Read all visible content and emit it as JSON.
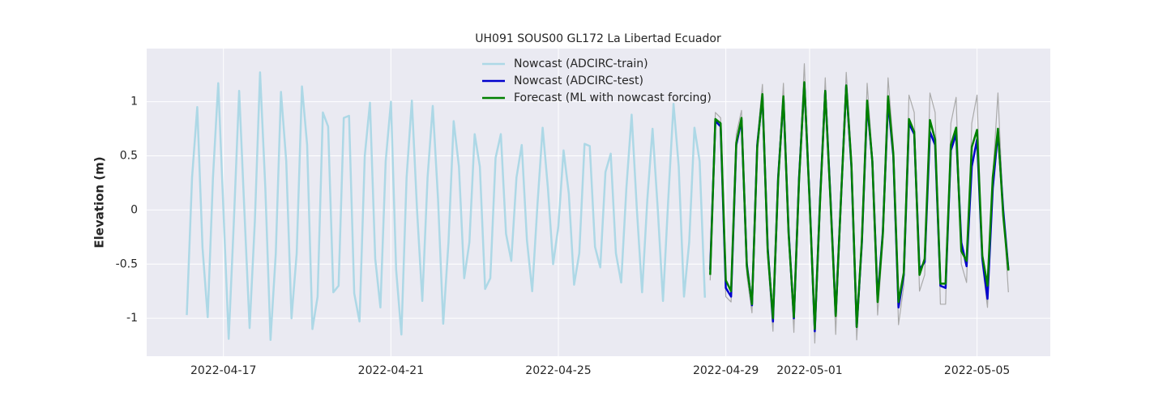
{
  "chart_data": {
    "type": "line",
    "title": "UH091 SOUS00 GL172 La Libertad Ecuador",
    "y_label": "Elevation (m)",
    "xlim": [
      "2022-04-15T04:00",
      "2022-05-06T18:00"
    ],
    "xticks": [
      "2022-04-17",
      "2022-04-21",
      "2022-04-25",
      "2022-04-29",
      "2022-05-01",
      "2022-05-05"
    ],
    "ylim": [
      -1.35,
      1.49
    ],
    "yticks": [
      -1.0,
      -0.5,
      0.0,
      0.5,
      1.0
    ],
    "grid": true,
    "legend": "upper center",
    "series": [
      {
        "name": "Nowcast (ADCIRC-train)",
        "color": "#add8e6",
        "width": 2.5,
        "x": [
          "2022-04-16T03:00",
          "2022-04-16T06:00",
          "2022-04-16T09:00",
          "2022-04-16T12:00",
          "2022-04-16T15:00",
          "2022-04-16T18:00",
          "2022-04-16T21:00",
          "2022-04-17T00:00",
          "2022-04-17T03:00",
          "2022-04-17T06:00",
          "2022-04-17T09:00",
          "2022-04-17T12:00",
          "2022-04-17T15:00",
          "2022-04-17T18:00",
          "2022-04-17T21:00",
          "2022-04-18T00:00",
          "2022-04-18T03:00",
          "2022-04-18T06:00",
          "2022-04-18T09:00",
          "2022-04-18T12:00",
          "2022-04-18T15:00",
          "2022-04-18T18:00",
          "2022-04-18T21:00",
          "2022-04-19T00:00",
          "2022-04-19T03:00",
          "2022-04-19T06:00",
          "2022-04-19T09:00",
          "2022-04-19T12:00",
          "2022-04-19T15:00",
          "2022-04-19T18:00",
          "2022-04-19T21:00",
          "2022-04-20T00:00",
          "2022-04-20T03:00",
          "2022-04-20T06:00",
          "2022-04-20T09:00",
          "2022-04-20T12:00",
          "2022-04-20T15:00",
          "2022-04-20T18:00",
          "2022-04-20T21:00",
          "2022-04-21T00:00",
          "2022-04-21T03:00",
          "2022-04-21T06:00",
          "2022-04-21T09:00",
          "2022-04-21T12:00",
          "2022-04-21T15:00",
          "2022-04-21T18:00",
          "2022-04-21T21:00",
          "2022-04-22T00:00",
          "2022-04-22T03:00",
          "2022-04-22T06:00",
          "2022-04-22T09:00",
          "2022-04-22T12:00",
          "2022-04-22T15:00",
          "2022-04-22T18:00",
          "2022-04-22T21:00",
          "2022-04-23T00:00",
          "2022-04-23T03:00",
          "2022-04-23T06:00",
          "2022-04-23T09:00",
          "2022-04-23T12:00",
          "2022-04-23T15:00",
          "2022-04-23T18:00",
          "2022-04-23T21:00",
          "2022-04-24T00:00",
          "2022-04-24T03:00",
          "2022-04-24T06:00",
          "2022-04-24T09:00",
          "2022-04-24T12:00",
          "2022-04-24T15:00",
          "2022-04-24T18:00",
          "2022-04-24T21:00",
          "2022-04-25T00:00",
          "2022-04-25T03:00",
          "2022-04-25T06:00",
          "2022-04-25T09:00",
          "2022-04-25T12:00",
          "2022-04-25T15:00",
          "2022-04-25T18:00",
          "2022-04-25T21:00",
          "2022-04-26T00:00",
          "2022-04-26T03:00",
          "2022-04-26T06:00",
          "2022-04-26T09:00",
          "2022-04-26T12:00",
          "2022-04-26T15:00",
          "2022-04-26T18:00",
          "2022-04-26T21:00",
          "2022-04-27T00:00",
          "2022-04-27T03:00",
          "2022-04-27T06:00",
          "2022-04-27T09:00",
          "2022-04-27T12:00",
          "2022-04-27T15:00",
          "2022-04-27T18:00",
          "2022-04-27T21:00",
          "2022-04-28T00:00",
          "2022-04-28T03:00",
          "2022-04-28T06:00",
          "2022-04-28T09:00",
          "2022-04-28T12:00"
        ],
        "values": [
          -0.97,
          0.3,
          0.95,
          -0.35,
          -0.99,
          0.3,
          1.17,
          0.0,
          -1.19,
          -0.1,
          1.1,
          0.0,
          -1.09,
          -0.1,
          1.27,
          0.2,
          -1.2,
          -0.4,
          1.09,
          0.45,
          -1.0,
          -0.4,
          1.14,
          0.6,
          -1.1,
          -0.8,
          0.9,
          0.77,
          -0.76,
          -0.7,
          0.85,
          0.87,
          -0.77,
          -1.03,
          0.5,
          0.99,
          -0.45,
          -0.9,
          0.45,
          1.0,
          -0.55,
          -1.15,
          0.3,
          1.01,
          0.0,
          -0.84,
          0.3,
          0.96,
          0.1,
          -1.05,
          -0.3,
          0.82,
          0.4,
          -0.63,
          -0.3,
          0.7,
          0.4,
          -0.73,
          -0.63,
          0.48,
          0.7,
          -0.22,
          -0.47,
          0.3,
          0.6,
          -0.28,
          -0.75,
          0.05,
          0.76,
          0.2,
          -0.5,
          -0.15,
          0.55,
          0.15,
          -0.69,
          -0.4,
          0.61,
          0.59,
          -0.34,
          -0.53,
          0.35,
          0.52,
          -0.4,
          -0.67,
          0.2,
          0.88,
          0.0,
          -0.76,
          0.1,
          0.75,
          0.0,
          -0.84,
          0.1,
          0.98,
          0.4,
          -0.8,
          -0.3,
          0.76,
          0.45,
          -0.81
        ]
      },
      {
        "color": "#aaaaaa",
        "width": 1.2,
        "x": [
          "2022-04-28T15:00",
          "2022-04-28T18:00",
          "2022-04-28T21:00",
          "2022-04-29T00:00",
          "2022-04-29T03:00",
          "2022-04-29T06:00",
          "2022-04-29T09:00",
          "2022-04-29T12:00",
          "2022-04-29T15:00",
          "2022-04-29T18:00",
          "2022-04-29T21:00",
          "2022-04-30T00:00",
          "2022-04-30T03:00",
          "2022-04-30T06:00",
          "2022-04-30T09:00",
          "2022-04-30T12:00",
          "2022-04-30T15:00",
          "2022-04-30T18:00",
          "2022-04-30T21:00",
          "2022-05-01T00:00",
          "2022-05-01T03:00",
          "2022-05-01T06:00",
          "2022-05-01T09:00",
          "2022-05-01T12:00",
          "2022-05-01T15:00",
          "2022-05-01T18:00",
          "2022-05-01T21:00",
          "2022-05-02T00:00",
          "2022-05-02T03:00",
          "2022-05-02T06:00",
          "2022-05-02T09:00",
          "2022-05-02T12:00",
          "2022-05-02T15:00",
          "2022-05-02T18:00",
          "2022-05-02T21:00",
          "2022-05-03T00:00",
          "2022-05-03T03:00",
          "2022-05-03T06:00",
          "2022-05-03T09:00",
          "2022-05-03T12:00",
          "2022-05-03T15:00",
          "2022-05-03T18:00",
          "2022-05-03T21:00",
          "2022-05-04T00:00",
          "2022-05-04T03:00",
          "2022-05-04T06:00",
          "2022-05-04T09:00",
          "2022-05-04T12:00",
          "2022-05-04T15:00",
          "2022-05-04T18:00",
          "2022-05-04T21:00",
          "2022-05-05T00:00",
          "2022-05-05T03:00",
          "2022-05-05T06:00",
          "2022-05-05T09:00",
          "2022-05-05T12:00",
          "2022-05-05T15:00",
          "2022-05-05T18:00"
        ],
        "values": [
          -0.65,
          0.9,
          0.85,
          -0.8,
          -0.85,
          0.7,
          0.92,
          -0.6,
          -0.95,
          0.65,
          1.16,
          -0.45,
          -1.12,
          0.35,
          1.17,
          -0.25,
          -1.13,
          0.35,
          1.35,
          0.05,
          -1.23,
          0.1,
          1.22,
          0.1,
          -1.15,
          0.1,
          1.27,
          0.5,
          -1.2,
          -0.35,
          1.17,
          0.5,
          -0.97,
          -0.3,
          1.22,
          0.6,
          -1.06,
          -0.7,
          1.06,
          0.9,
          -0.75,
          -0.6,
          1.08,
          0.9,
          -0.87,
          -0.87,
          0.8,
          1.04,
          -0.5,
          -0.67,
          0.8,
          1.06,
          -0.5,
          -0.9,
          0.3,
          1.08,
          0.0,
          -0.76
        ]
      },
      {
        "name": "Nowcast (ADCIRC-test)",
        "color": "#0000cd",
        "width": 2.5,
        "x": [
          "2022-04-28T15:00",
          "2022-04-28T18:00",
          "2022-04-28T21:00",
          "2022-04-29T00:00",
          "2022-04-29T03:00",
          "2022-04-29T06:00",
          "2022-04-29T09:00",
          "2022-04-29T12:00",
          "2022-04-29T15:00",
          "2022-04-29T18:00",
          "2022-04-29T21:00",
          "2022-04-30T00:00",
          "2022-04-30T03:00",
          "2022-04-30T06:00",
          "2022-04-30T09:00",
          "2022-04-30T12:00",
          "2022-04-30T15:00",
          "2022-04-30T18:00",
          "2022-04-30T21:00",
          "2022-05-01T00:00",
          "2022-05-01T03:00",
          "2022-05-01T06:00",
          "2022-05-01T09:00",
          "2022-05-01T12:00",
          "2022-05-01T15:00",
          "2022-05-01T18:00",
          "2022-05-01T21:00",
          "2022-05-02T00:00",
          "2022-05-02T03:00",
          "2022-05-02T06:00",
          "2022-05-02T09:00",
          "2022-05-02T12:00",
          "2022-05-02T15:00",
          "2022-05-02T18:00",
          "2022-05-02T21:00",
          "2022-05-03T00:00",
          "2022-05-03T03:00",
          "2022-05-03T06:00",
          "2022-05-03T09:00",
          "2022-05-03T12:00",
          "2022-05-03T15:00",
          "2022-05-03T18:00",
          "2022-05-03T21:00",
          "2022-05-04T00:00",
          "2022-05-04T03:00",
          "2022-05-04T06:00",
          "2022-05-04T09:00",
          "2022-05-04T12:00",
          "2022-05-04T15:00",
          "2022-05-04T18:00",
          "2022-05-04T21:00",
          "2022-05-05T00:00",
          "2022-05-05T03:00",
          "2022-05-05T06:00",
          "2022-05-05T09:00",
          "2022-05-05T12:00",
          "2022-05-05T15:00",
          "2022-05-05T18:00"
        ],
        "values": [
          -0.55,
          0.82,
          0.77,
          -0.72,
          -0.8,
          0.6,
          0.83,
          -0.5,
          -0.88,
          0.6,
          1.05,
          -0.35,
          -1.03,
          0.3,
          1.03,
          -0.2,
          -1.0,
          0.3,
          1.17,
          0.1,
          -1.12,
          0.1,
          1.1,
          0.1,
          -0.97,
          0.1,
          1.15,
          0.4,
          -1.08,
          -0.3,
          0.98,
          0.45,
          -0.82,
          -0.2,
          1.0,
          0.5,
          -0.9,
          -0.6,
          0.8,
          0.7,
          -0.55,
          -0.48,
          0.72,
          0.6,
          -0.7,
          -0.72,
          0.55,
          0.7,
          -0.3,
          -0.52,
          0.4,
          0.65,
          -0.45,
          -0.82,
          0.2,
          0.72,
          0.0,
          -0.55
        ]
      },
      {
        "name": "Forecast (ML with nowcast forcing)",
        "color": "#008000",
        "width": 2.5,
        "x": [
          "2022-04-28T15:00",
          "2022-04-28T18:00",
          "2022-04-28T21:00",
          "2022-04-29T00:00",
          "2022-04-29T03:00",
          "2022-04-29T06:00",
          "2022-04-29T09:00",
          "2022-04-29T12:00",
          "2022-04-29T15:00",
          "2022-04-29T18:00",
          "2022-04-29T21:00",
          "2022-04-30T00:00",
          "2022-04-30T03:00",
          "2022-04-30T06:00",
          "2022-04-30T09:00",
          "2022-04-30T12:00",
          "2022-04-30T15:00",
          "2022-04-30T18:00",
          "2022-04-30T21:00",
          "2022-05-01T00:00",
          "2022-05-01T03:00",
          "2022-05-01T06:00",
          "2022-05-01T09:00",
          "2022-05-01T12:00",
          "2022-05-01T15:00",
          "2022-05-01T18:00",
          "2022-05-01T21:00",
          "2022-05-02T00:00",
          "2022-05-02T03:00",
          "2022-05-02T06:00",
          "2022-05-02T09:00",
          "2022-05-02T12:00",
          "2022-05-02T15:00",
          "2022-05-02T18:00",
          "2022-05-02T21:00",
          "2022-05-03T00:00",
          "2022-05-03T03:00",
          "2022-05-03T06:00",
          "2022-05-03T09:00",
          "2022-05-03T12:00",
          "2022-05-03T15:00",
          "2022-05-03T18:00",
          "2022-05-03T21:00",
          "2022-05-04T00:00",
          "2022-05-04T03:00",
          "2022-05-04T06:00",
          "2022-05-04T09:00",
          "2022-05-04T12:00",
          "2022-05-04T15:00",
          "2022-05-04T18:00",
          "2022-05-04T21:00",
          "2022-05-05T00:00",
          "2022-05-05T03:00",
          "2022-05-05T06:00",
          "2022-05-05T09:00",
          "2022-05-05T12:00",
          "2022-05-05T15:00",
          "2022-05-05T18:00"
        ],
        "values": [
          -0.6,
          0.84,
          0.8,
          -0.65,
          -0.75,
          0.62,
          0.85,
          -0.52,
          -0.87,
          0.58,
          1.07,
          -0.38,
          -1.0,
          0.28,
          1.05,
          -0.22,
          -0.99,
          0.28,
          1.18,
          0.08,
          -1.1,
          0.08,
          1.1,
          0.08,
          -0.98,
          0.1,
          1.15,
          0.42,
          -1.08,
          -0.28,
          1.01,
          0.45,
          -0.85,
          -0.22,
          1.05,
          0.52,
          -0.85,
          -0.58,
          0.84,
          0.72,
          -0.6,
          -0.45,
          0.83,
          0.65,
          -0.68,
          -0.68,
          0.6,
          0.76,
          -0.38,
          -0.47,
          0.58,
          0.74,
          -0.42,
          -0.7,
          0.3,
          0.75,
          -0.05,
          -0.56
        ]
      }
    ]
  }
}
